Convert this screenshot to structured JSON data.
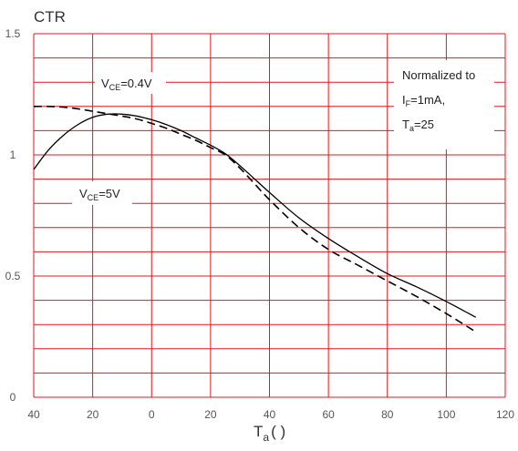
{
  "chart_data": {
    "type": "line",
    "ylabel": "CTR",
    "xlabel_main": "T",
    "xlabel_sub": "a",
    "xlabel_unit": "( )",
    "xlim": [
      -40,
      120
    ],
    "ylim": [
      0,
      1.5
    ],
    "x_ticks": [
      -40,
      -20,
      0,
      20,
      40,
      60,
      80,
      100,
      120
    ],
    "x_tick_labels": [
      "40",
      "20",
      "0",
      "20",
      "40",
      "60",
      "80",
      "100",
      "120"
    ],
    "y_ticks": [
      0,
      0.5,
      1,
      1.5
    ],
    "y_tick_labels": [
      "0",
      "0.5",
      "1",
      "1.5"
    ],
    "grid": true,
    "grid_color": "#e8141c",
    "series": [
      {
        "label_main": "V",
        "label_sub": "CE",
        "label_value": "=5V",
        "style": "solid",
        "x": [
          -40,
          -35,
          -30,
          -25,
          -20,
          -15,
          -10,
          -5,
          0,
          5,
          10,
          15,
          20,
          25,
          30,
          35,
          40,
          50,
          60,
          70,
          80,
          90,
          100,
          110
        ],
        "y": [
          0.94,
          1.02,
          1.08,
          1.125,
          1.155,
          1.168,
          1.168,
          1.16,
          1.145,
          1.125,
          1.1,
          1.07,
          1.04,
          1.005,
          0.955,
          0.9,
          0.845,
          0.74,
          0.655,
          0.58,
          0.51,
          0.455,
          0.395,
          0.33
        ]
      },
      {
        "label_main": "V",
        "label_sub": "CE",
        "label_value": "=0.4V",
        "style": "dashed",
        "x": [
          -40,
          -35,
          -30,
          -25,
          -20,
          -15,
          -10,
          -5,
          0,
          5,
          10,
          15,
          20,
          25,
          30,
          35,
          40,
          50,
          60,
          70,
          80,
          90,
          100,
          110
        ],
        "y": [
          1.2,
          1.2,
          1.197,
          1.19,
          1.18,
          1.17,
          1.16,
          1.148,
          1.13,
          1.11,
          1.085,
          1.06,
          1.03,
          1.0,
          0.945,
          0.88,
          0.815,
          0.7,
          0.61,
          0.545,
          0.48,
          0.415,
          0.345,
          0.27
        ]
      }
    ],
    "note": {
      "line1": "Normalized to",
      "line2_main": "I",
      "line2_sub": "F",
      "line2_value": "=1mA,",
      "line3_main": "T",
      "line3_sub": "a",
      "line3_value": "=25"
    }
  }
}
